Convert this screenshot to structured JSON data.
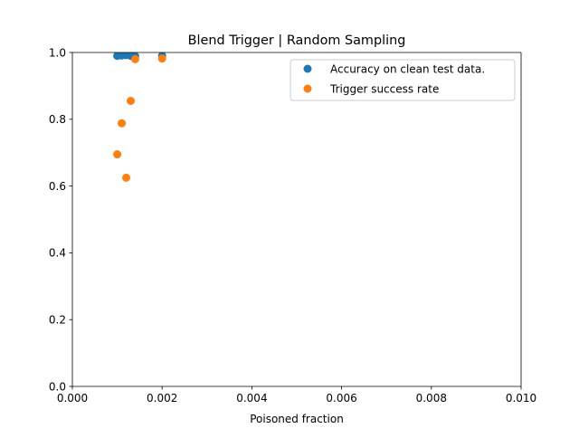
{
  "chart_data": {
    "type": "scatter",
    "title": "Blend Trigger | Random Sampling",
    "xlabel": "Poisoned fraction",
    "ylabel": "",
    "xlim": [
      0.0,
      0.01
    ],
    "ylim": [
      0.0,
      1.0
    ],
    "xticks": [
      0.0,
      0.002,
      0.004,
      0.006,
      0.008,
      0.01
    ],
    "xtick_labels": [
      "0.000",
      "0.002",
      "0.004",
      "0.006",
      "0.008",
      "0.010"
    ],
    "yticks": [
      0.0,
      0.2,
      0.4,
      0.6,
      0.8,
      1.0
    ],
    "ytick_labels": [
      "0.0",
      "0.2",
      "0.4",
      "0.6",
      "0.8",
      "1.0"
    ],
    "grid": false,
    "legend_position": "top-right",
    "series": [
      {
        "name": "Accuracy on clean test data.",
        "color": "#1f77b4",
        "points": [
          {
            "x": 0.001,
            "y": 0.99
          },
          {
            "x": 0.0011,
            "y": 0.991
          },
          {
            "x": 0.0012,
            "y": 0.992
          },
          {
            "x": 0.0013,
            "y": 0.99
          },
          {
            "x": 0.0014,
            "y": 0.989
          },
          {
            "x": 0.002,
            "y": 0.99
          }
        ]
      },
      {
        "name": "Trigger success rate",
        "color": "#ff7f0e",
        "points": [
          {
            "x": 0.001,
            "y": 0.695
          },
          {
            "x": 0.0011,
            "y": 0.788
          },
          {
            "x": 0.0012,
            "y": 0.625
          },
          {
            "x": 0.0013,
            "y": 0.855
          },
          {
            "x": 0.0014,
            "y": 0.98
          },
          {
            "x": 0.002,
            "y": 0.982
          }
        ]
      }
    ]
  }
}
